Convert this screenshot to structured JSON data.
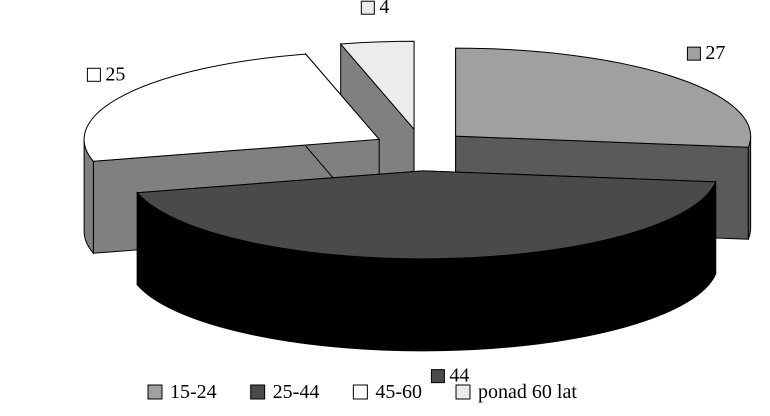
{
  "chart_data": {
    "type": "pie",
    "style": "3d-exploded",
    "slices": [
      {
        "label": "15-24",
        "value": 27,
        "color": "#a0a0a0",
        "side_color": "#5a5a5a"
      },
      {
        "label": "25-44",
        "value": 44,
        "color": "#4a4a4a",
        "side_color": "#000000"
      },
      {
        "label": "45-60",
        "value": 25,
        "color": "#ffffff",
        "side_color": "#808080"
      },
      {
        "label": "ponad 60 lat",
        "value": 4,
        "color": "#ececec",
        "side_color": "#808080"
      }
    ],
    "legend": {
      "placement": "bottom",
      "entries": [
        "15-24",
        "25-44",
        "45-60",
        "ponad 60 lat"
      ]
    }
  }
}
